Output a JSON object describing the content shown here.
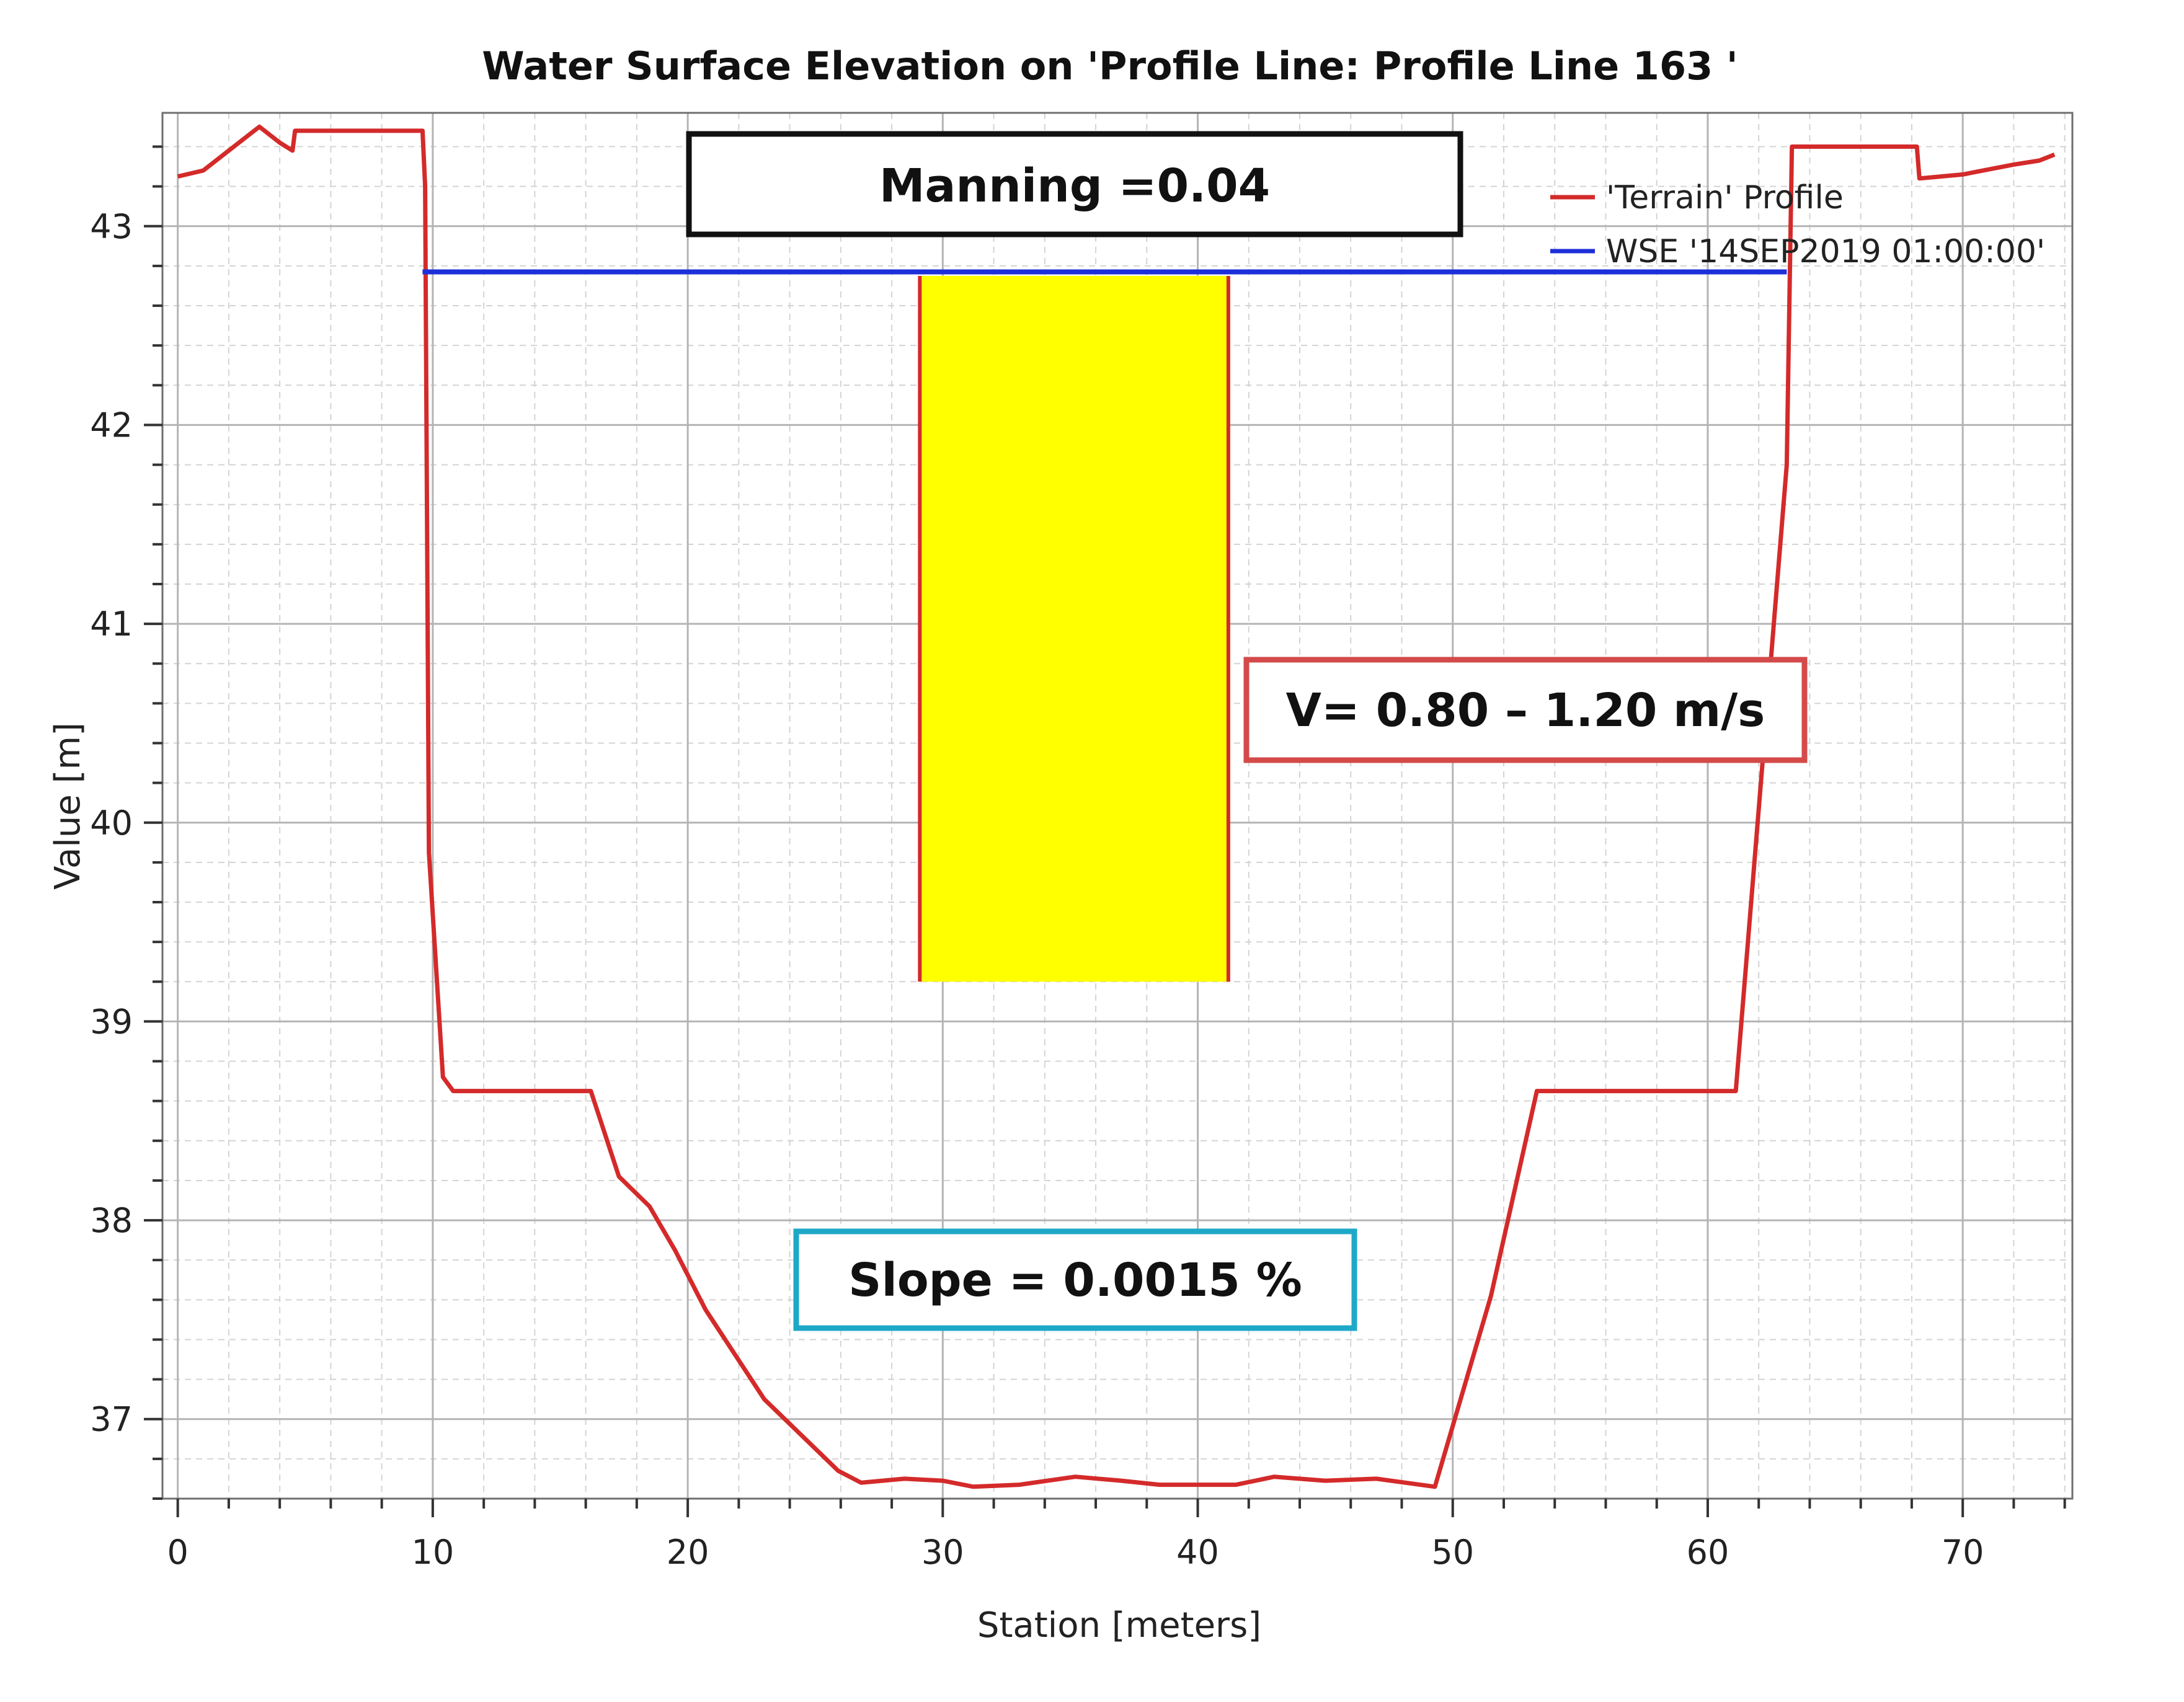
{
  "chart_data": {
    "type": "line",
    "title": "Water Surface Elevation on 'Profile Line: Profile Line 163 '",
    "xlabel": "Station [meters]",
    "ylabel": "Value [m]",
    "xlim": [
      -0.6,
      74.3
    ],
    "ylim": [
      36.6,
      43.57
    ],
    "xticks": [
      0,
      10,
      20,
      30,
      40,
      50,
      60,
      70
    ],
    "yticks": [
      37,
      38,
      39,
      40,
      41,
      42,
      43
    ],
    "grid": true,
    "legend_position": "top-right",
    "series": [
      {
        "name": "'Terrain' Profile",
        "color": "#d42a2a",
        "x": [
          0,
          1,
          2,
          3.2,
          4,
          4.5,
          4.6,
          7,
          9.6,
          9.7,
          9.85,
          10.4,
          10.8,
          13,
          16.2,
          17.3,
          18.5,
          19.5,
          20.7,
          23,
          25.9,
          26.8,
          28.5,
          30,
          31.2,
          33,
          35.2,
          37,
          38.5,
          41.5,
          43,
          45,
          47,
          49.3,
          51.5,
          53.3,
          57,
          61.1,
          63.1,
          63.3,
          67,
          68.2,
          68.3,
          70,
          72,
          73,
          73.6
        ],
        "y": [
          43.25,
          43.28,
          43.38,
          43.5,
          43.42,
          43.38,
          43.48,
          43.48,
          43.48,
          43.2,
          39.85,
          38.72,
          38.65,
          38.65,
          38.65,
          38.22,
          38.07,
          37.85,
          37.55,
          37.1,
          36.74,
          36.68,
          36.7,
          36.69,
          36.66,
          36.67,
          36.71,
          36.69,
          36.67,
          36.67,
          36.71,
          36.69,
          36.7,
          36.66,
          37.62,
          38.65,
          38.65,
          38.65,
          41.8,
          43.4,
          43.4,
          43.4,
          43.24,
          43.26,
          43.31,
          43.33,
          43.36
        ]
      },
      {
        "name": "WSE '14SEP2019 01:00:00'",
        "color": "#1d2fd8",
        "x": [
          9.6,
          63.1
        ],
        "y": [
          42.77,
          42.77
        ]
      }
    ],
    "annotations": {
      "manning": "Manning =0.04",
      "velocity": "V= 0.80 – 1.20 m/s",
      "slope": "Slope = 0.0015 %"
    },
    "highlight_band": {
      "x": [
        29.1,
        41.2
      ],
      "y": [
        39.2,
        42.75
      ],
      "fill": "#ffff00",
      "edge": "#d42a2a"
    },
    "colors": {
      "manning_box": "#111111",
      "velocity_box": "#d44a4a",
      "slope_box": "#1ea8c8"
    }
  }
}
